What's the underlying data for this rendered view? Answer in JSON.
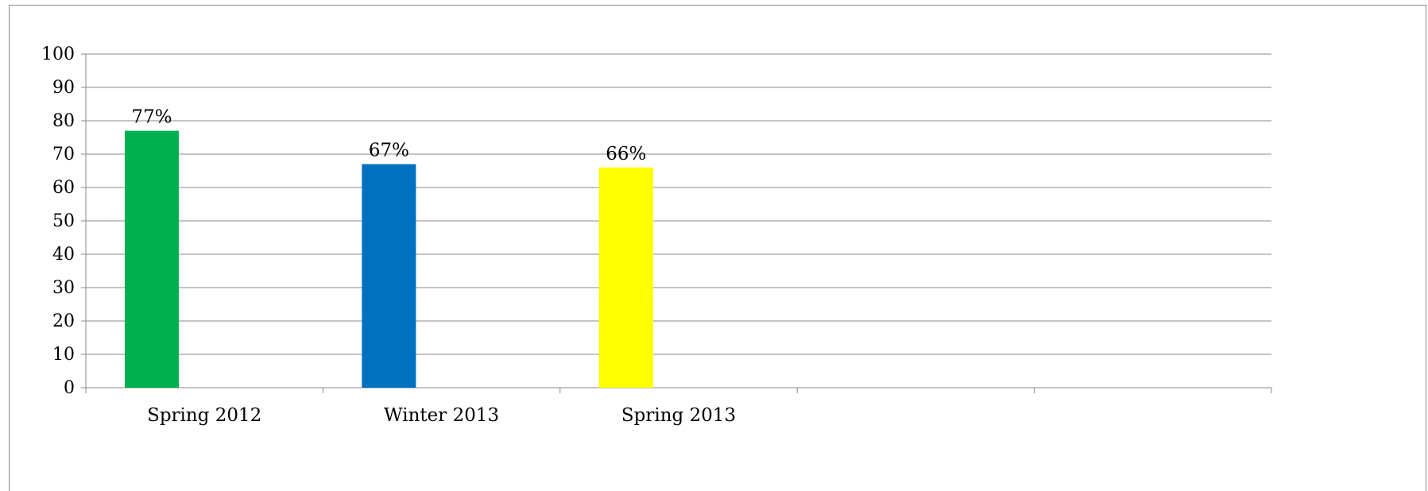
{
  "chart_data": {
    "type": "bar",
    "title": "",
    "xlabel": "",
    "ylabel": "",
    "categories": [
      "Spring 2012",
      "Winter 2013",
      "Spring 2013",
      "",
      ""
    ],
    "values": [
      77,
      67,
      66,
      null,
      null
    ],
    "data_labels": [
      "77%",
      "67%",
      "66%",
      "",
      ""
    ],
    "colors": [
      "#00b050",
      "#0070c0",
      "#ffff00"
    ],
    "ylim": [
      0,
      100
    ],
    "yticks": [
      "0",
      "10",
      "20",
      "30",
      "40",
      "50",
      "60",
      "70",
      "80",
      "90",
      "100"
    ],
    "grid": true,
    "legend": "none"
  }
}
